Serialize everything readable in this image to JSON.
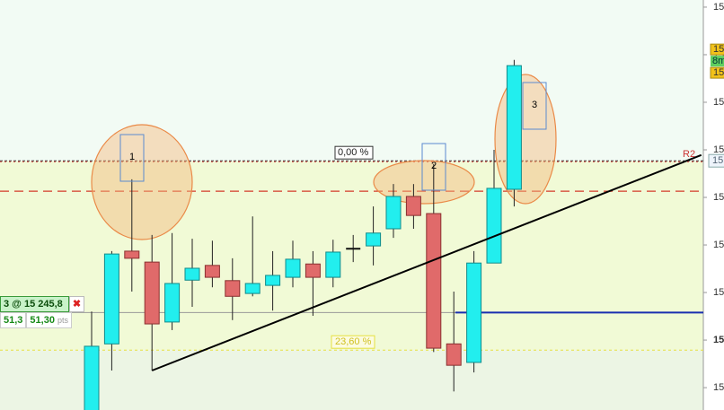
{
  "chart_data": {
    "type": "candlestick",
    "series": {
      "open": [
        15224.7,
        15239.2,
        15258.7,
        15256.4,
        15243.8,
        15252.6,
        15255.7,
        15252.5,
        15249.8,
        15251.5,
        15253.2,
        15256.0,
        15253.2,
        15259.2,
        15259.8,
        15263.4,
        15270.2,
        15266.6,
        15239.2,
        15235.3,
        15256.2,
        15271.7
      ],
      "high": [
        15246.0,
        15258.7,
        15273.8,
        15262.1,
        15262.5,
        15261.3,
        15260.9,
        15257.2,
        15266.0,
        15258.7,
        15260.9,
        15258.7,
        15261.1,
        15262.1,
        15268.1,
        15272.8,
        15272.8,
        15277.0,
        15250.2,
        15258.7,
        15280.0,
        15298.9
      ],
      "low": [
        15222.0,
        15233.6,
        15250.2,
        15233.6,
        15242.1,
        15247.0,
        15251.1,
        15244.2,
        15249.2,
        15246.2,
        15251.1,
        15245.1,
        15251.1,
        15256.4,
        15255.7,
        15261.5,
        15263.4,
        15237.5,
        15229.2,
        15233.2,
        15256.2,
        15268.1
      ],
      "close": [
        15238.7,
        15258.1,
        15257.2,
        15243.4,
        15251.9,
        15255.1,
        15253.2,
        15249.2,
        15251.9,
        15253.6,
        15257.0,
        15253.2,
        15258.5,
        15259.2,
        15262.5,
        15270.2,
        15266.2,
        15238.3,
        15234.7,
        15256.2,
        15271.9,
        15297.7
      ]
    },
    "up_color": "#22eeee",
    "down_color": "#e06a6a",
    "ylim": [
      15225.3,
      15311.5
    ],
    "yticks": [
      {
        "value": 15230,
        "label": "15"
      },
      {
        "value": 15240,
        "label": "15"
      },
      {
        "value": 15250,
        "label": "15"
      },
      {
        "value": 15260,
        "label": "15"
      },
      {
        "value": 15270,
        "label": "15"
      },
      {
        "value": 15280,
        "label": "15"
      },
      {
        "value": 15290,
        "label": "15"
      },
      {
        "value": 15300,
        "label": "15"
      },
      {
        "value": 15310,
        "label": "15"
      }
    ],
    "fibo_levels": [
      {
        "value": 15277.7,
        "label": "0,00 %"
      },
      {
        "value": 15237.9,
        "label": "23,60 %"
      }
    ],
    "pivot": {
      "value": 15277.7,
      "label": "R2",
      "tag": "15"
    },
    "red_level": 15271.3,
    "position_level": 15245.8,
    "trendline": {
      "from": [
        3,
        15233.6
      ],
      "to": [
        30.3,
        15278.9
      ]
    },
    "price_tags": [
      {
        "value": 15301.1,
        "label": "15"
      },
      {
        "value": 15296.2,
        "label": "15"
      }
    ],
    "timer": "8m",
    "annotations": [
      "1",
      "2",
      "3"
    ]
  },
  "position": {
    "label": "3 @ 15 245,8",
    "profit": "51,3",
    "profit_pts": "51,30",
    "unit": "pts"
  }
}
